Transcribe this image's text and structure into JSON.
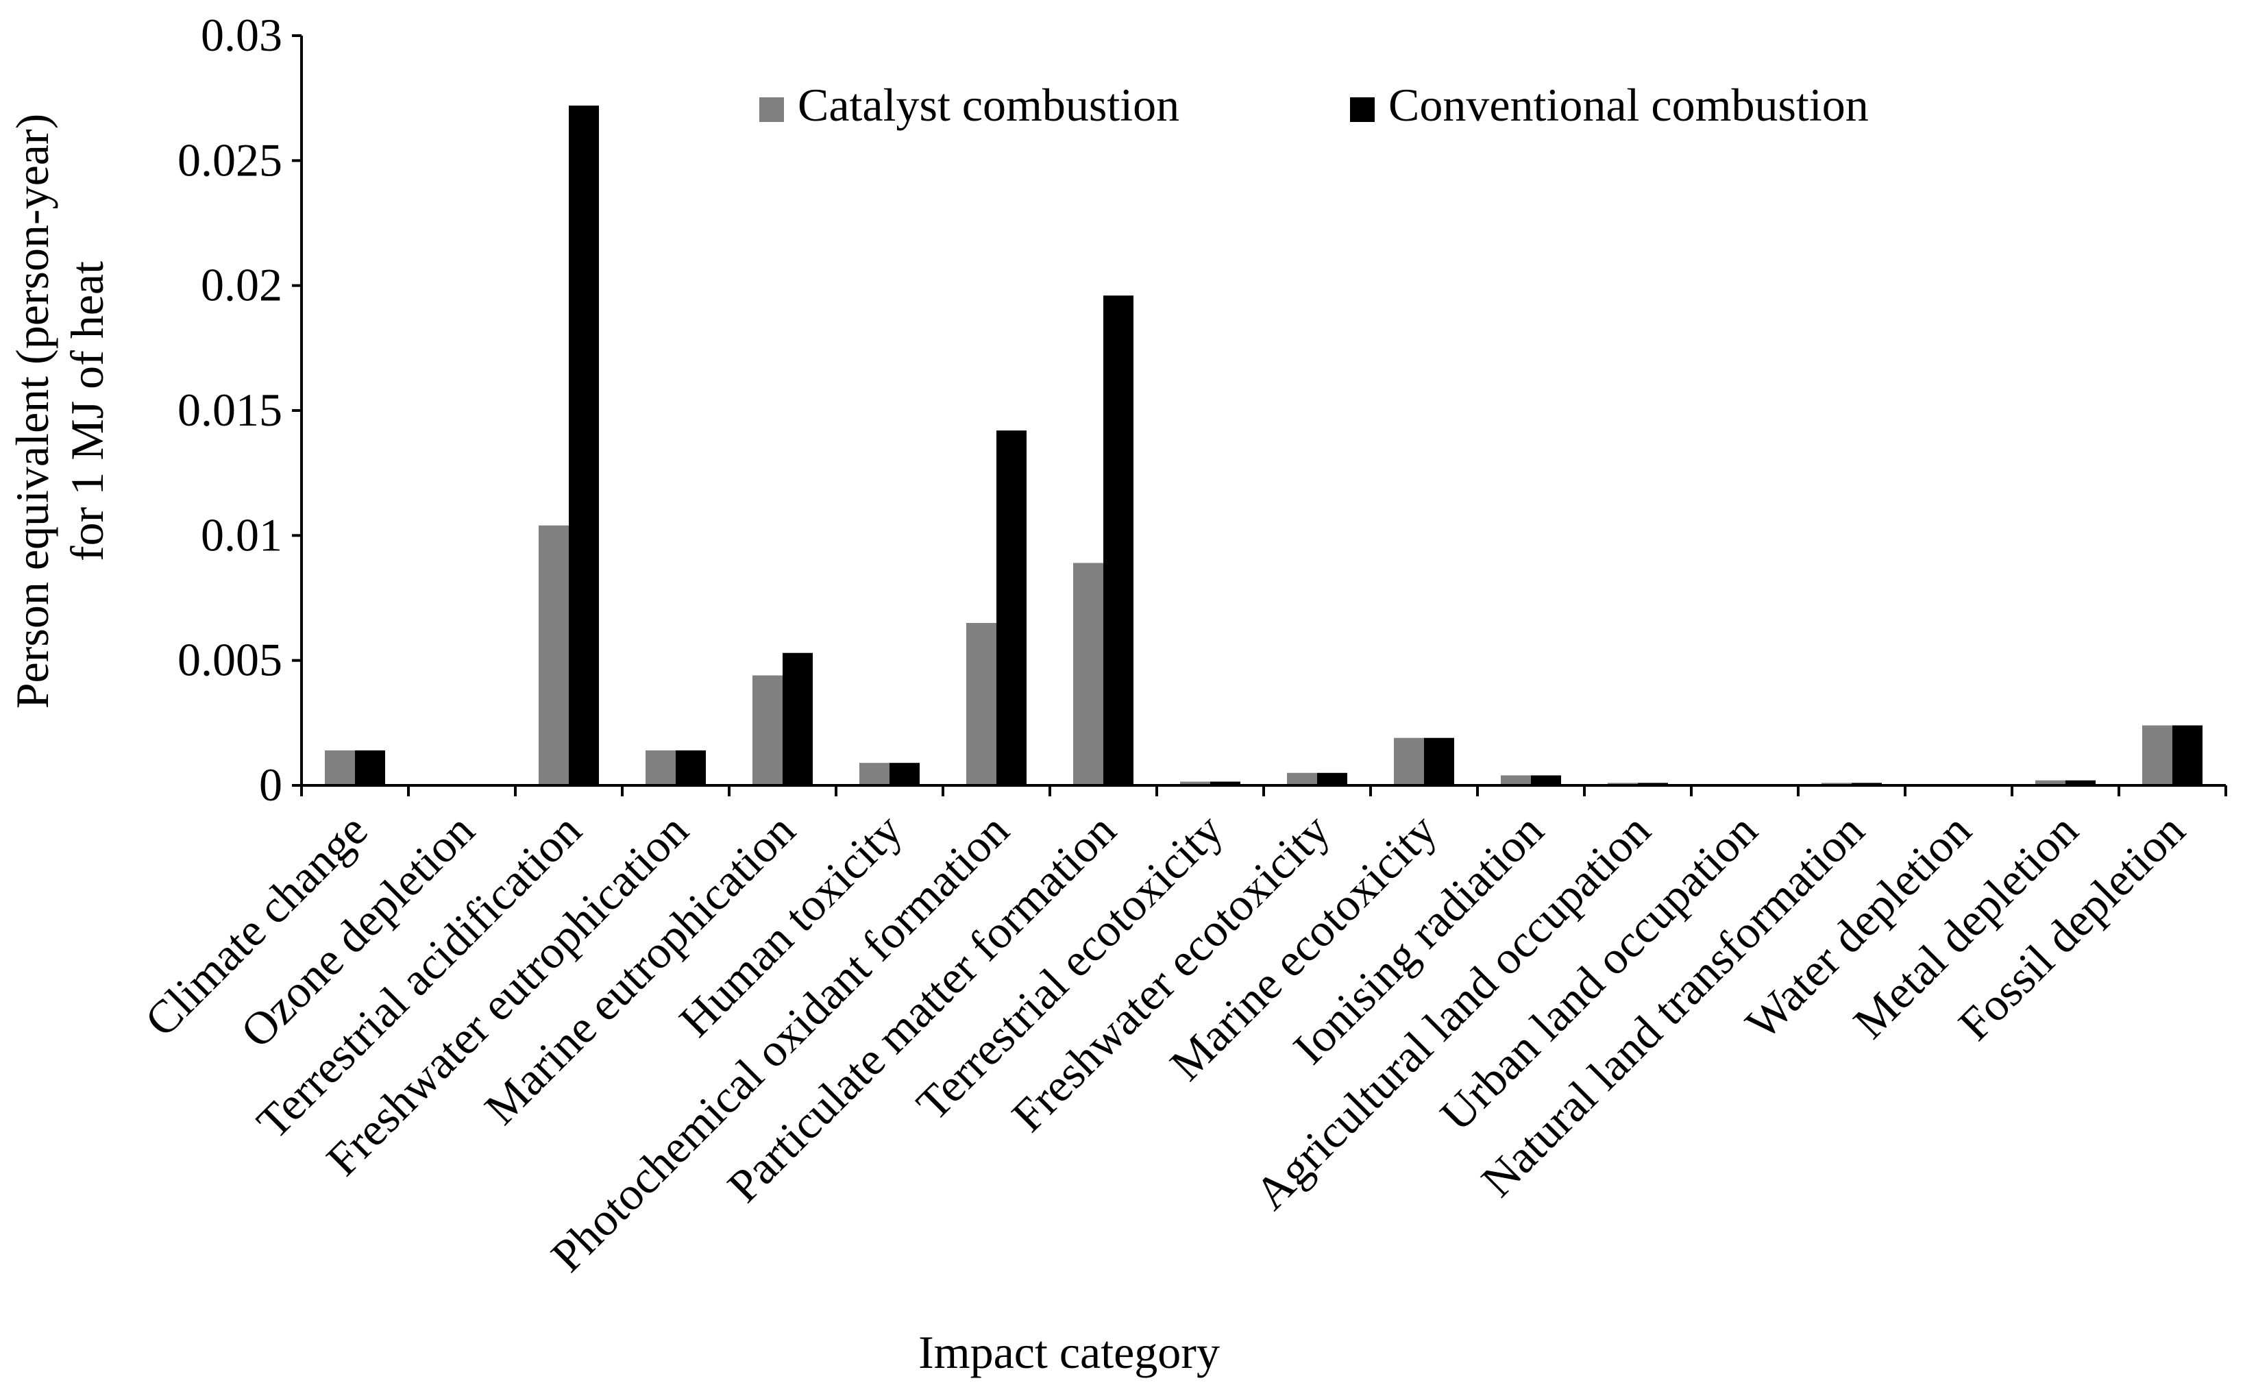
{
  "chart_data": {
    "type": "bar",
    "title": "",
    "xlabel": "Impact category",
    "ylabel_lines": [
      "Person equivalent (person-year)",
      "for 1 MJ of heat"
    ],
    "ylim": [
      0,
      0.03
    ],
    "yticks": [
      0,
      0.005,
      0.01,
      0.015,
      0.02,
      0.025,
      0.03
    ],
    "ytick_labels": [
      "0",
      "0.005",
      "0.01",
      "0.015",
      "0.02",
      "0.025",
      "0.03"
    ],
    "categories": [
      "Climate change",
      "Ozone depletion",
      "Terrestrial acidification",
      "Freshwater eutrophication",
      "Marine eutrophication",
      "Human toxicity",
      "Photochemical oxidant formation",
      "Particulate matter formation",
      "Terrestrial ecotoxicity",
      "Freshwater ecotoxicity",
      "Marine ecotoxicity",
      "Ionising radiation",
      "Agricultural land occupation",
      "Urban land occupation",
      "Natural land transformation",
      "Water depletion",
      "Metal depletion",
      "Fossil depletion"
    ],
    "series": [
      {
        "name": "Catalyst combustion",
        "color": "#808080",
        "values": [
          0.0014,
          0.0,
          0.0104,
          0.0014,
          0.0044,
          0.0009,
          0.0065,
          0.0089,
          0.00015,
          0.0005,
          0.0019,
          0.0004,
          0.0001,
          5e-05,
          0.0001,
          0.0,
          0.0002,
          0.0024
        ]
      },
      {
        "name": "Conventional combustion",
        "color": "#000000",
        "values": [
          0.0014,
          0.0,
          0.0272,
          0.0014,
          0.0053,
          0.0009,
          0.0142,
          0.0196,
          0.00015,
          0.0005,
          0.0019,
          0.0004,
          0.0001,
          5e-05,
          0.0001,
          0.0,
          0.0002,
          0.0024
        ]
      }
    ],
    "legend": {
      "position": "top-center"
    },
    "grid": false
  }
}
